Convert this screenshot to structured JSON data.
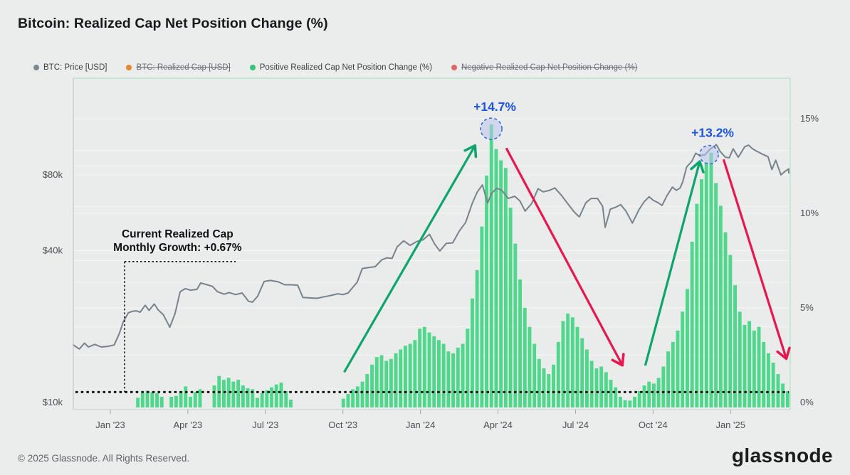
{
  "header": {
    "title": "Bitcoin: Realized Cap Net Position Change (%)"
  },
  "legend": {
    "items": [
      {
        "label": "BTC: Price [USD]",
        "color": "#7d8890",
        "enabled": true
      },
      {
        "label": "BTC: Realized Cap [USD]",
        "color": "#e8882e",
        "enabled": false
      },
      {
        "label": "Positive Realized Cap Net Position Change (%)",
        "color": "#2fc872",
        "enabled": true
      },
      {
        "label": "Negative Realized Cap Net Position Change (%)",
        "color": "#e06661",
        "enabled": false
      }
    ]
  },
  "chart_data": {
    "type": "mixed",
    "title": "Bitcoin: Realized Cap Net Position Change (%)",
    "x_axis": {
      "unit": "months_from_jan_2023",
      "range": [
        -1.43,
        26.3
      ],
      "ticks": [
        {
          "label": "Jan '23",
          "t": 0
        },
        {
          "label": "Apr '23",
          "t": 3
        },
        {
          "label": "Jul '23",
          "t": 6
        },
        {
          "label": "Oct '23",
          "t": 9
        },
        {
          "label": "Jan '24",
          "t": 12
        },
        {
          "label": "Apr '24",
          "t": 15
        },
        {
          "label": "Jul '24",
          "t": 18
        },
        {
          "label": "Oct '24",
          "t": 21
        },
        {
          "label": "Jan '25",
          "t": 24
        }
      ]
    },
    "left_axis": {
      "scale": "log",
      "unit": "USD",
      "ticks": [
        {
          "label": "$10k",
          "usd_k": 10
        },
        {
          "label": "$40k",
          "usd_k": 40
        },
        {
          "label": "$80k",
          "usd_k": 80
        }
      ],
      "gridlines_usd_k": [
        20,
        30,
        40,
        60,
        80,
        100,
        200
      ]
    },
    "right_axis": {
      "scale": "linear",
      "unit": "percent",
      "ticks": [
        {
          "label": "0%",
          "pct": 0
        },
        {
          "label": "5%",
          "pct": 5
        },
        {
          "label": "10%",
          "pct": 10
        },
        {
          "label": "15%",
          "pct": 15
        }
      ],
      "gridlines_pct": [
        2.5,
        5,
        7.5,
        10,
        12.5,
        15
      ]
    },
    "series": [
      {
        "name": "BTC: Price [USD]",
        "type": "line",
        "axis": "left",
        "color": "#77838b",
        "points": [
          [
            -1.43,
            16.9
          ],
          [
            -1.2,
            16.3
          ],
          [
            -1.0,
            17.2
          ],
          [
            -0.85,
            16.6
          ],
          [
            -0.6,
            17.0
          ],
          [
            -0.35,
            16.6
          ],
          [
            -0.1,
            16.7
          ],
          [
            0.15,
            16.9
          ],
          [
            0.35,
            18.8
          ],
          [
            0.5,
            20.9
          ],
          [
            0.7,
            22.7
          ],
          [
            0.85,
            23.0
          ],
          [
            1.0,
            23.1
          ],
          [
            1.15,
            22.8
          ],
          [
            1.35,
            24.3
          ],
          [
            1.5,
            23.2
          ],
          [
            1.7,
            24.6
          ],
          [
            1.85,
            23.3
          ],
          [
            2.05,
            22.3
          ],
          [
            2.3,
            19.9
          ],
          [
            2.5,
            22.5
          ],
          [
            2.7,
            27.5
          ],
          [
            2.9,
            28.3
          ],
          [
            3.1,
            27.9
          ],
          [
            3.35,
            28.1
          ],
          [
            3.5,
            29.8
          ],
          [
            3.7,
            29.4
          ],
          [
            3.95,
            28.9
          ],
          [
            4.15,
            27.5
          ],
          [
            4.4,
            26.9
          ],
          [
            4.6,
            27.3
          ],
          [
            4.85,
            26.8
          ],
          [
            5.1,
            27.2
          ],
          [
            5.35,
            25.2
          ],
          [
            5.5,
            25.0
          ],
          [
            5.7,
            26.4
          ],
          [
            5.95,
            30.2
          ],
          [
            6.2,
            30.5
          ],
          [
            6.5,
            30.1
          ],
          [
            6.75,
            29.3
          ],
          [
            7.0,
            29.3
          ],
          [
            7.25,
            29.2
          ],
          [
            7.45,
            26.1
          ],
          [
            7.7,
            26.0
          ],
          [
            8.0,
            25.9
          ],
          [
            8.3,
            26.3
          ],
          [
            8.55,
            26.6
          ],
          [
            8.8,
            27.0
          ],
          [
            9.0,
            26.8
          ],
          [
            9.2,
            27.2
          ],
          [
            9.55,
            30.0
          ],
          [
            9.75,
            34.0
          ],
          [
            10.0,
            34.3
          ],
          [
            10.25,
            34.6
          ],
          [
            10.5,
            36.8
          ],
          [
            10.7,
            37.5
          ],
          [
            10.9,
            37.3
          ],
          [
            11.1,
            41.5
          ],
          [
            11.35,
            43.8
          ],
          [
            11.6,
            42.0
          ],
          [
            11.85,
            43.5
          ],
          [
            12.1,
            44.2
          ],
          [
            12.35,
            46.5
          ],
          [
            12.55,
            42.5
          ],
          [
            12.75,
            39.9
          ],
          [
            13.0,
            42.8
          ],
          [
            13.25,
            43.0
          ],
          [
            13.5,
            47.8
          ],
          [
            13.75,
            51.8
          ],
          [
            14.0,
            61.5
          ],
          [
            14.2,
            68.5
          ],
          [
            14.4,
            73.0
          ],
          [
            14.6,
            61.8
          ],
          [
            14.75,
            67.5
          ],
          [
            14.95,
            70.8
          ],
          [
            15.15,
            69.5
          ],
          [
            15.4,
            64.5
          ],
          [
            15.65,
            65.8
          ],
          [
            15.85,
            63.0
          ],
          [
            16.05,
            57.5
          ],
          [
            16.3,
            61.5
          ],
          [
            16.55,
            70.5
          ],
          [
            16.75,
            68.5
          ],
          [
            17.0,
            69.5
          ],
          [
            17.2,
            71.0
          ],
          [
            17.45,
            66.5
          ],
          [
            17.7,
            61.5
          ],
          [
            17.95,
            57.0
          ],
          [
            18.15,
            54.5
          ],
          [
            18.4,
            62.0
          ],
          [
            18.6,
            64.5
          ],
          [
            18.85,
            64.5
          ],
          [
            19.05,
            60.0
          ],
          [
            19.15,
            49.5
          ],
          [
            19.35,
            58.5
          ],
          [
            19.55,
            59.5
          ],
          [
            19.75,
            61.0
          ],
          [
            19.95,
            57.5
          ],
          [
            20.2,
            51.5
          ],
          [
            20.45,
            58.0
          ],
          [
            20.65,
            62.5
          ],
          [
            20.85,
            65.5
          ],
          [
            21.0,
            63.5
          ],
          [
            21.2,
            62.0
          ],
          [
            21.35,
            60.5
          ],
          [
            21.55,
            66.5
          ],
          [
            21.75,
            71.5
          ],
          [
            21.9,
            69.5
          ],
          [
            22.05,
            71.0
          ],
          [
            22.15,
            75.0
          ],
          [
            22.3,
            86.0
          ],
          [
            22.5,
            90.5
          ],
          [
            22.65,
            97.5
          ],
          [
            22.8,
            95.5
          ],
          [
            23.0,
            96.0
          ],
          [
            23.2,
            101.0
          ],
          [
            23.45,
            105.5
          ],
          [
            23.6,
            99.0
          ],
          [
            23.8,
            94.0
          ],
          [
            23.95,
            93.5
          ],
          [
            24.1,
            101.5
          ],
          [
            24.3,
            94.0
          ],
          [
            24.55,
            103.5
          ],
          [
            24.7,
            105.0
          ],
          [
            24.85,
            101.5
          ],
          [
            25.0,
            99.5
          ],
          [
            25.2,
            97.0
          ],
          [
            25.45,
            94.5
          ],
          [
            25.6,
            84.0
          ],
          [
            25.75,
            91.5
          ],
          [
            25.95,
            80.0
          ],
          [
            26.1,
            82.5
          ],
          [
            26.25,
            84.5
          ],
          [
            26.35,
            81.5
          ]
        ]
      },
      {
        "name": "Positive Realized Cap Net Position Change (%)",
        "type": "bar",
        "axis": "right",
        "color": "#4fd88b",
        "t_start": -1.43,
        "t_end": 26.3,
        "values_pct": [
          0,
          0,
          0,
          0,
          0,
          0,
          0,
          0,
          0,
          0,
          0,
          0,
          0,
          0.25,
          0.5,
          0.62,
          0.55,
          0.5,
          0.3,
          0,
          0.3,
          0.35,
          0.6,
          0.85,
          0.3,
          0.55,
          0.7,
          0,
          0,
          0.9,
          1.4,
          1.2,
          1.3,
          1.1,
          1.2,
          0.9,
          0.75,
          0.7,
          0.25,
          0.5,
          0.65,
          0.8,
          0.95,
          1.05,
          0.6,
          0.15,
          0,
          0,
          0,
          0,
          0,
          0,
          0,
          0,
          0,
          0,
          0.2,
          0.45,
          0.7,
          0.85,
          1.1,
          1.5,
          2.0,
          2.4,
          2.5,
          2.2,
          2.3,
          2.6,
          2.8,
          3.0,
          3.1,
          3.3,
          3.9,
          4.0,
          3.7,
          3.5,
          3.3,
          3.1,
          2.7,
          2.6,
          2.9,
          3.1,
          3.9,
          5.5,
          7.0,
          9.3,
          12.0,
          14.7,
          13.4,
          12.8,
          12.4,
          10.3,
          8.4,
          6.5,
          5.0,
          4.0,
          3.1,
          2.3,
          1.8,
          1.5,
          2.0,
          3.2,
          4.3,
          4.7,
          4.5,
          4.0,
          3.4,
          2.8,
          2.2,
          1.8,
          1.9,
          1.6,
          1.2,
          0.8,
          0.3,
          0.12,
          0.1,
          0.3,
          0.6,
          0.9,
          1.1,
          1.0,
          1.3,
          1.9,
          2.7,
          3.2,
          3.8,
          4.8,
          6.0,
          8.5,
          10.5,
          11.8,
          12.7,
          13.2,
          11.6,
          10.4,
          9.0,
          7.8,
          6.2,
          4.8,
          4.1,
          4.3,
          3.8,
          4.0,
          3.2,
          2.6,
          2.1,
          1.5,
          1.0,
          0.6
        ]
      }
    ],
    "annotations": {
      "growth_note": {
        "line1": "Current Realized Cap",
        "line2": "Monthly Growth: +0.67%",
        "t_center": 2.6,
        "bracket": {
          "t": 0.55,
          "top_pct": 7.45,
          "t_right": 4.85
        },
        "baseline_pct": 0.55
      },
      "peaks": [
        {
          "label": "+14.7%",
          "t": 14.74,
          "pct": 14.47,
          "radius": 15
        },
        {
          "label": "+13.2%",
          "t": 23.17,
          "pct": 13.1,
          "radius": 13
        }
      ],
      "arrows": [
        {
          "color": "green",
          "from_t": 9.05,
          "from_pct": 1.6,
          "to_t": 14.1,
          "to_pct": 13.55
        },
        {
          "color": "red",
          "from_t": 15.32,
          "from_pct": 13.45,
          "to_t": 19.8,
          "to_pct": 2.0
        },
        {
          "color": "green",
          "from_t": 20.7,
          "from_pct": 1.95,
          "to_t": 22.8,
          "to_pct": 12.7
        },
        {
          "color": "red",
          "from_t": 23.73,
          "from_pct": 12.85,
          "to_t": 26.15,
          "to_pct": 2.35
        }
      ]
    }
  },
  "colors": {
    "background": "#ebecec",
    "bar_green": "#4fd88b",
    "price_gray": "#77838b",
    "arrow_green": "#0da56b",
    "arrow_red": "#e8174f",
    "annotation_blue": "#1d53dd",
    "annotation_black": "#141414",
    "circle_fill": "#b9c4ec",
    "circle_stroke": "#3f6ad8",
    "axis_text": "#4c5156",
    "gridline": "#f4f5f5",
    "border_green": "#9ce3b8",
    "border_gray": "#b6c2c8"
  },
  "footer": {
    "copyright": "© 2025 Glassnode. All Rights Reserved.",
    "logo_text": "glassnode"
  }
}
